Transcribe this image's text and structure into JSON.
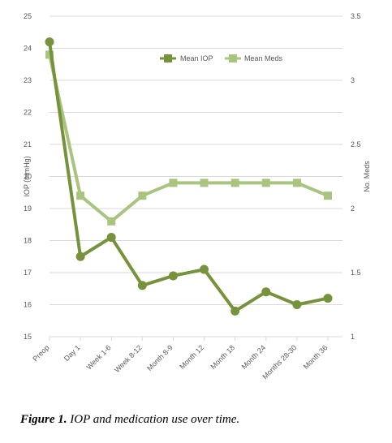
{
  "chart_data": {
    "type": "line",
    "categories": [
      "Preop",
      "Day 1",
      "Week 1-6",
      "Week 8-12",
      "Month 8-9",
      "Month 12",
      "Month 18",
      "Month 24",
      "Months 28-30",
      "Month 36"
    ],
    "series": [
      {
        "name": "Mean IOP",
        "axis": "left",
        "color": "#76923c",
        "values": [
          24.2,
          17.5,
          18.1,
          16.6,
          16.9,
          17.1,
          15.8,
          16.4,
          16.0,
          16.2
        ]
      },
      {
        "name": "Mean Meds",
        "axis": "right",
        "color": "#a9c47f",
        "values": [
          3.2,
          2.1,
          1.9,
          2.1,
          2.2,
          2.2,
          2.2,
          2.2,
          2.2,
          2.1
        ]
      }
    ],
    "ylabel": "IOP (mmHg)",
    "y2label": "No. Meds",
    "ylim": [
      15,
      25
    ],
    "y2lim": [
      1,
      3.5
    ],
    "yticks": [
      "15",
      "16",
      "17",
      "18",
      "19",
      "20",
      "21",
      "22",
      "23",
      "24",
      "25"
    ],
    "y2ticks": [
      "1",
      "1.5",
      "2",
      "2.5",
      "3",
      "3.5"
    ],
    "grid": true,
    "legend_position": "top-right",
    "legend": [
      "Mean IOP",
      "Mean Meds"
    ]
  },
  "caption": {
    "label": "Figure 1.",
    "text": " IOP and medication use over time."
  }
}
